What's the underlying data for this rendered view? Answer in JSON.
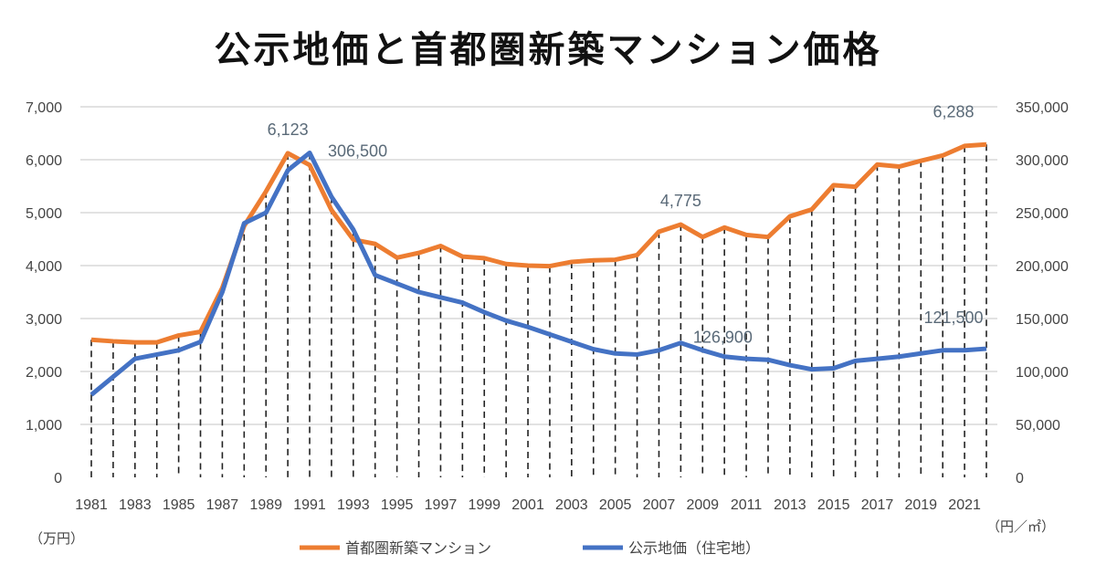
{
  "chart_data": {
    "type": "line",
    "title": "公示地価と首都圏新築マンション価格",
    "x": [
      1981,
      1982,
      1983,
      1984,
      1985,
      1986,
      1987,
      1988,
      1989,
      1990,
      1991,
      1992,
      1993,
      1994,
      1995,
      1996,
      1997,
      1998,
      1999,
      2000,
      2001,
      2002,
      2003,
      2004,
      2005,
      2006,
      2007,
      2008,
      2009,
      2010,
      2011,
      2012,
      2013,
      2014,
      2015,
      2016,
      2017,
      2018,
      2019,
      2020,
      2021,
      2022
    ],
    "x_tick_labels": [
      "1981",
      "1983",
      "1985",
      "1987",
      "1989",
      "1991",
      "1993",
      "1995",
      "1997",
      "1999",
      "2001",
      "2003",
      "2005",
      "2007",
      "2009",
      "2011",
      "2013",
      "2015",
      "2017",
      "2019",
      "2021"
    ],
    "y_left": {
      "unit": "（万円）",
      "ylim": [
        0,
        7000
      ],
      "ticks": [
        "0",
        "1,000",
        "2,000",
        "3,000",
        "4,000",
        "5,000",
        "6,000",
        "7,000"
      ]
    },
    "y_right": {
      "unit": "（円／㎡）",
      "ylim": [
        0,
        350000
      ],
      "ticks": [
        "0",
        "50,000",
        "100,000",
        "150,000",
        "200,000",
        "250,000",
        "300,000",
        "350,000"
      ]
    },
    "grid": true,
    "drop_lines": true,
    "legend": "bottom",
    "series": [
      {
        "name": "首都圏新築マンション",
        "axis": "left",
        "color": "#ED7D31",
        "values": [
          2600,
          2570,
          2550,
          2550,
          2680,
          2750,
          3580,
          4750,
          5400,
          6123,
          5900,
          5050,
          4490,
          4410,
          4150,
          4240,
          4370,
          4170,
          4140,
          4030,
          4000,
          3990,
          4070,
          4100,
          4110,
          4200,
          4640,
          4775,
          4540,
          4720,
          4580,
          4540,
          4930,
          5060,
          5520,
          5490,
          5910,
          5870,
          5980,
          6080,
          6260,
          6288
        ],
        "labels": [
          {
            "year": 1990,
            "text": "6,123"
          },
          {
            "year": 2008,
            "text": "4,775"
          },
          {
            "year": 2022,
            "text": "6,288"
          }
        ]
      },
      {
        "name": "公示地価（住宅地）",
        "axis": "right",
        "color": "#4472C4",
        "values": [
          78000,
          95000,
          112000,
          116000,
          120000,
          128000,
          175000,
          240000,
          250000,
          290000,
          306500,
          265000,
          234000,
          191000,
          183000,
          175000,
          170000,
          165000,
          156000,
          148000,
          142000,
          135000,
          128000,
          121000,
          117000,
          116000,
          120000,
          127000,
          120000,
          114000,
          112000,
          111000,
          106000,
          102000,
          103000,
          110000,
          112000,
          114000,
          117000,
          120000,
          120000,
          121500
        ],
        "labels": [
          {
            "year": 1991,
            "text": "306,500"
          },
          {
            "year": 2008,
            "text": "126,900"
          },
          {
            "year": 2022,
            "text": "121,500"
          }
        ]
      }
    ]
  }
}
